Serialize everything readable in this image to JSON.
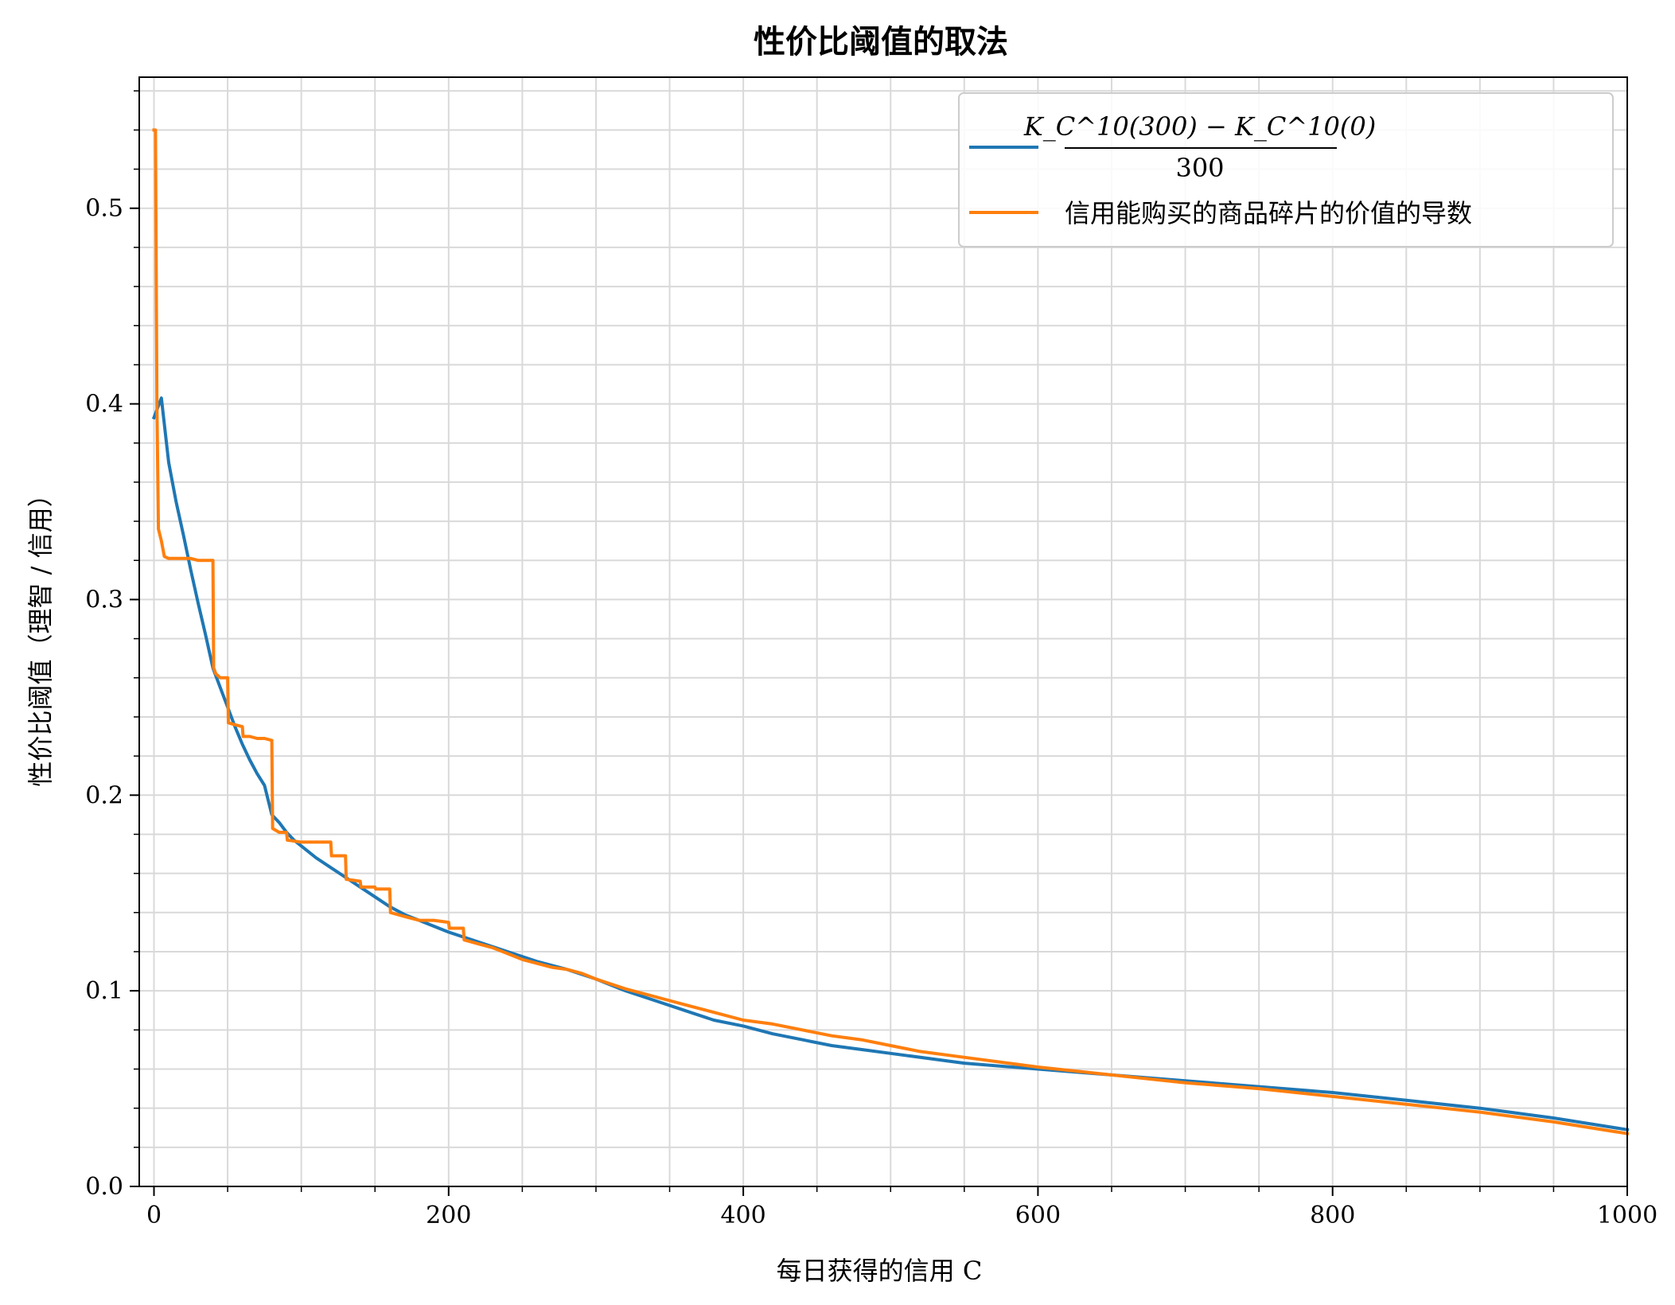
{
  "chart_data": {
    "type": "line",
    "title": "性价比阈值的取法",
    "xlabel": "每日获得的信用 C",
    "ylabel": "性价比阈值（理智 / 信用）",
    "xlim": [
      -10,
      1000
    ],
    "ylim": [
      0,
      0.567
    ],
    "x_ticks": [
      0,
      200,
      400,
      600,
      800,
      1000
    ],
    "x_tick_labels": [
      "0",
      "200",
      "400",
      "600",
      "800",
      "1000"
    ],
    "y_ticks": [
      0,
      0.1,
      0.2,
      0.3,
      0.4,
      0.5
    ],
    "y_tick_labels": [
      "0.0",
      "0.1",
      "0.2",
      "0.3",
      "0.4",
      "0.5"
    ],
    "x_minor_step": 50,
    "y_minor_step": 0.02,
    "grid": true,
    "legend_position": "top-right",
    "series": [
      {
        "name": "(K_C^10(300) − K_C^10(0)) / 300",
        "legend_numerator": "K_C^10(300) − K_C^10(0)",
        "legend_denominator": "300",
        "color": "#1f77b4",
        "x": [
          0,
          5,
          10,
          15,
          20,
          25,
          30,
          35,
          40,
          45,
          50,
          55,
          60,
          65,
          70,
          75,
          80,
          85,
          90,
          95,
          100,
          110,
          120,
          130,
          140,
          150,
          160,
          170,
          180,
          190,
          200,
          220,
          240,
          260,
          280,
          300,
          320,
          340,
          360,
          380,
          400,
          420,
          440,
          460,
          480,
          500,
          550,
          600,
          650,
          700,
          750,
          800,
          850,
          900,
          950,
          1000
        ],
        "y": [
          0.393,
          0.403,
          0.37,
          0.35,
          0.333,
          0.315,
          0.298,
          0.282,
          0.265,
          0.255,
          0.245,
          0.235,
          0.226,
          0.218,
          0.211,
          0.205,
          0.19,
          0.186,
          0.181,
          0.177,
          0.174,
          0.168,
          0.163,
          0.158,
          0.153,
          0.148,
          0.143,
          0.139,
          0.136,
          0.133,
          0.13,
          0.125,
          0.12,
          0.115,
          0.111,
          0.106,
          0.1,
          0.095,
          0.09,
          0.085,
          0.082,
          0.078,
          0.075,
          0.072,
          0.07,
          0.068,
          0.063,
          0.06,
          0.057,
          0.054,
          0.051,
          0.048,
          0.044,
          0.04,
          0.035,
          0.029
        ]
      },
      {
        "name": "信用能购买的商品碎片的价值的导数",
        "color": "#ff7f0e",
        "x": [
          0,
          1,
          2,
          3,
          5,
          7,
          10,
          15,
          20,
          25,
          30,
          35,
          40,
          40.5,
          42,
          45,
          48,
          50,
          50.5,
          55,
          60,
          60.5,
          65,
          70,
          75,
          80,
          80.5,
          85,
          90,
          90.5,
          100,
          110,
          120,
          120.5,
          130,
          130.5,
          140,
          140.5,
          150,
          150.5,
          160,
          160.5,
          170,
          180,
          190,
          200,
          200.5,
          210,
          210.5,
          220,
          230,
          240,
          250,
          260,
          270,
          280,
          290,
          300,
          320,
          340,
          360,
          380,
          400,
          420,
          440,
          460,
          480,
          500,
          520,
          540,
          560,
          580,
          600,
          650,
          700,
          750,
          800,
          850,
          900,
          950,
          1000
        ],
        "y": [
          0.54,
          0.54,
          0.4,
          0.336,
          0.33,
          0.322,
          0.321,
          0.321,
          0.321,
          0.321,
          0.32,
          0.32,
          0.32,
          0.265,
          0.262,
          0.26,
          0.26,
          0.26,
          0.237,
          0.236,
          0.235,
          0.23,
          0.23,
          0.229,
          0.229,
          0.228,
          0.183,
          0.181,
          0.181,
          0.177,
          0.176,
          0.176,
          0.176,
          0.169,
          0.169,
          0.157,
          0.156,
          0.153,
          0.153,
          0.152,
          0.152,
          0.14,
          0.138,
          0.136,
          0.136,
          0.135,
          0.132,
          0.132,
          0.126,
          0.124,
          0.122,
          0.119,
          0.116,
          0.114,
          0.112,
          0.111,
          0.109,
          0.106,
          0.101,
          0.097,
          0.093,
          0.089,
          0.085,
          0.083,
          0.08,
          0.077,
          0.075,
          0.072,
          0.069,
          0.067,
          0.065,
          0.063,
          0.061,
          0.057,
          0.053,
          0.05,
          0.046,
          0.042,
          0.038,
          0.033,
          0.027
        ]
      }
    ]
  }
}
